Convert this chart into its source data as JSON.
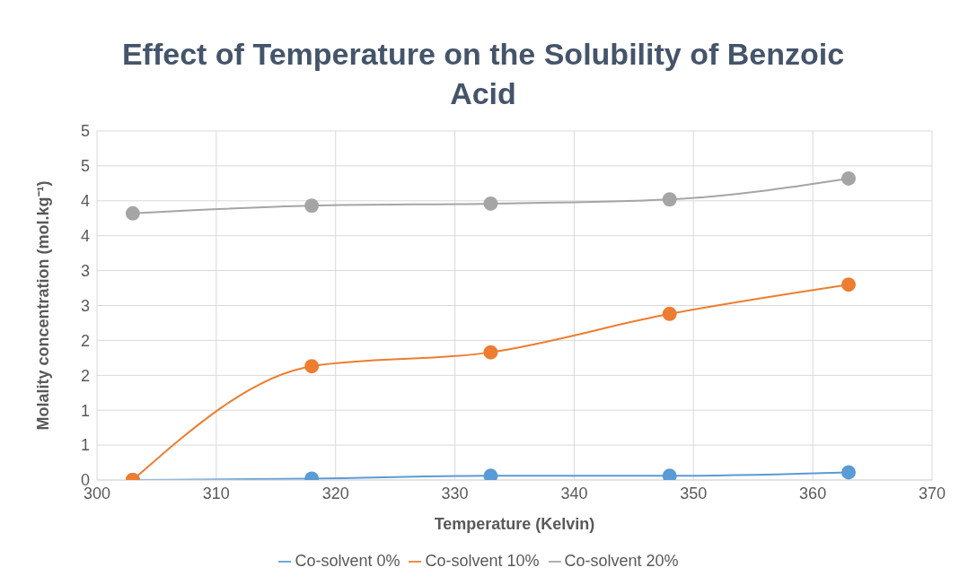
{
  "chart_data": {
    "type": "line",
    "title": "Effect of Temperature on the Solubility of Benzoic Acid",
    "xlabel": "Temperature (Kelvin)",
    "ylabel": "Molality concentration (mol.kg⁻¹)",
    "x": [
      303,
      318,
      333,
      348,
      363
    ],
    "series": [
      {
        "name": "Co-solvent 0%",
        "color": "#5b9bd5",
        "values": [
          0,
          0.02,
          0.06,
          0.06,
          0.11
        ]
      },
      {
        "name": "Co-solvent 10%",
        "color": "#ed7d31",
        "values": [
          0,
          1.63,
          1.83,
          2.38,
          2.8
        ]
      },
      {
        "name": "Co-solvent 20%",
        "color": "#a5a5a5",
        "values": [
          3.82,
          3.93,
          3.96,
          4.02,
          4.32
        ]
      }
    ],
    "xlim": [
      300,
      370
    ],
    "xticks": [
      300,
      310,
      320,
      330,
      340,
      350,
      360,
      370
    ],
    "ylim": [
      0,
      5
    ],
    "yticks": [
      0,
      {
        "value": 0.5,
        "label": "1"
      },
      1,
      {
        "value": 1.5,
        "label": "2"
      },
      2,
      {
        "value": 2.5,
        "label": "3"
      },
      3,
      {
        "value": 3.5,
        "label": "4"
      },
      4,
      {
        "value": 4.5,
        "label": "5"
      },
      5
    ],
    "grid": true,
    "legend": "bottom",
    "marker": "circle",
    "line_style": "solid"
  }
}
